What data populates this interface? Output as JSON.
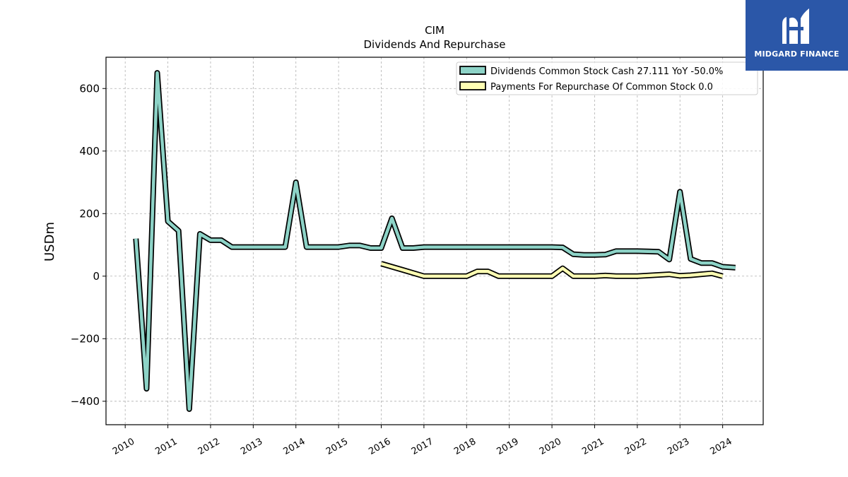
{
  "brand": {
    "name": "MIDGARD FINANCE",
    "bg": "#2b57a8"
  },
  "chart_data": {
    "type": "line",
    "title": "CIM",
    "subtitle": "Dividends And Repurchase",
    "ylabel": "USDm",
    "xlabel": "",
    "ylim": [
      -475,
      700
    ],
    "xlim": [
      2009.55,
      2024.95
    ],
    "yticks": [
      600,
      400,
      200,
      0,
      -200,
      -400
    ],
    "ytick_labels": [
      "600",
      "400",
      "200",
      "0",
      "−200",
      "−400"
    ],
    "xticks": [
      2010,
      2011,
      2012,
      2013,
      2014,
      2015,
      2016,
      2017,
      2018,
      2019,
      2020,
      2021,
      2022,
      2023,
      2024
    ],
    "xtick_labels": [
      "2010",
      "2011",
      "2012",
      "2013",
      "2014",
      "2015",
      "2016",
      "2017",
      "2018",
      "2019",
      "2020",
      "2021",
      "2022",
      "2023",
      "2024"
    ],
    "grid": true,
    "legend_position": "top-right",
    "series": [
      {
        "name": "Dividends Common Stock Cash  27.111 YoY -50.0%",
        "color": "#8dd3c7",
        "x": [
          2010.25,
          2010.5,
          2010.75,
          2011.0,
          2011.25,
          2011.5,
          2011.75,
          2012.0,
          2012.25,
          2012.5,
          2012.75,
          2013.0,
          2013.25,
          2013.5,
          2013.75,
          2014.0,
          2014.25,
          2014.5,
          2014.75,
          2015.0,
          2015.25,
          2015.5,
          2015.75,
          2016.0,
          2016.25,
          2016.5,
          2016.75,
          2017.0,
          2017.25,
          2017.5,
          2017.75,
          2018.0,
          2018.25,
          2018.5,
          2018.75,
          2019.0,
          2019.25,
          2019.5,
          2019.75,
          2020.0,
          2020.25,
          2020.5,
          2020.75,
          2021.0,
          2021.25,
          2021.5,
          2021.75,
          2022.0,
          2022.25,
          2022.5,
          2022.75,
          2023.0,
          2023.25,
          2023.5,
          2023.75,
          2024.0,
          2024.3
        ],
        "values": [
          120,
          -360,
          650,
          175,
          145,
          -425,
          135,
          115,
          115,
          93,
          93,
          93,
          93,
          93,
          93,
          300,
          93,
          93,
          93,
          93,
          98,
          98,
          90,
          90,
          185,
          90,
          90,
          93,
          93,
          93,
          93,
          93,
          93,
          93,
          93,
          93,
          93,
          93,
          93,
          93,
          92,
          70,
          68,
          68,
          69,
          80,
          80,
          80,
          79,
          78,
          53,
          270,
          55,
          42,
          42,
          30,
          27
        ]
      },
      {
        "name": "Payments For Repurchase Of Common Stock  0.0",
        "color": "#ffffb3",
        "x": [
          2016.0,
          2016.5,
          2017.0,
          2017.25,
          2017.5,
          2017.75,
          2018.0,
          2018.25,
          2018.5,
          2018.75,
          2019.0,
          2019.25,
          2019.5,
          2019.75,
          2020.0,
          2020.25,
          2020.5,
          2020.75,
          2021.0,
          2021.25,
          2021.5,
          2021.75,
          2022.0,
          2022.25,
          2022.5,
          2022.75,
          2023.0,
          2023.25,
          2023.5,
          2023.75,
          2024.0
        ],
        "values": [
          40,
          20,
          0,
          0,
          0,
          0,
          0,
          15,
          15,
          0,
          0,
          0,
          0,
          0,
          0,
          25,
          0,
          0,
          0,
          2,
          0,
          0,
          0,
          2,
          4,
          6,
          1,
          3,
          6,
          9,
          0
        ]
      }
    ]
  }
}
